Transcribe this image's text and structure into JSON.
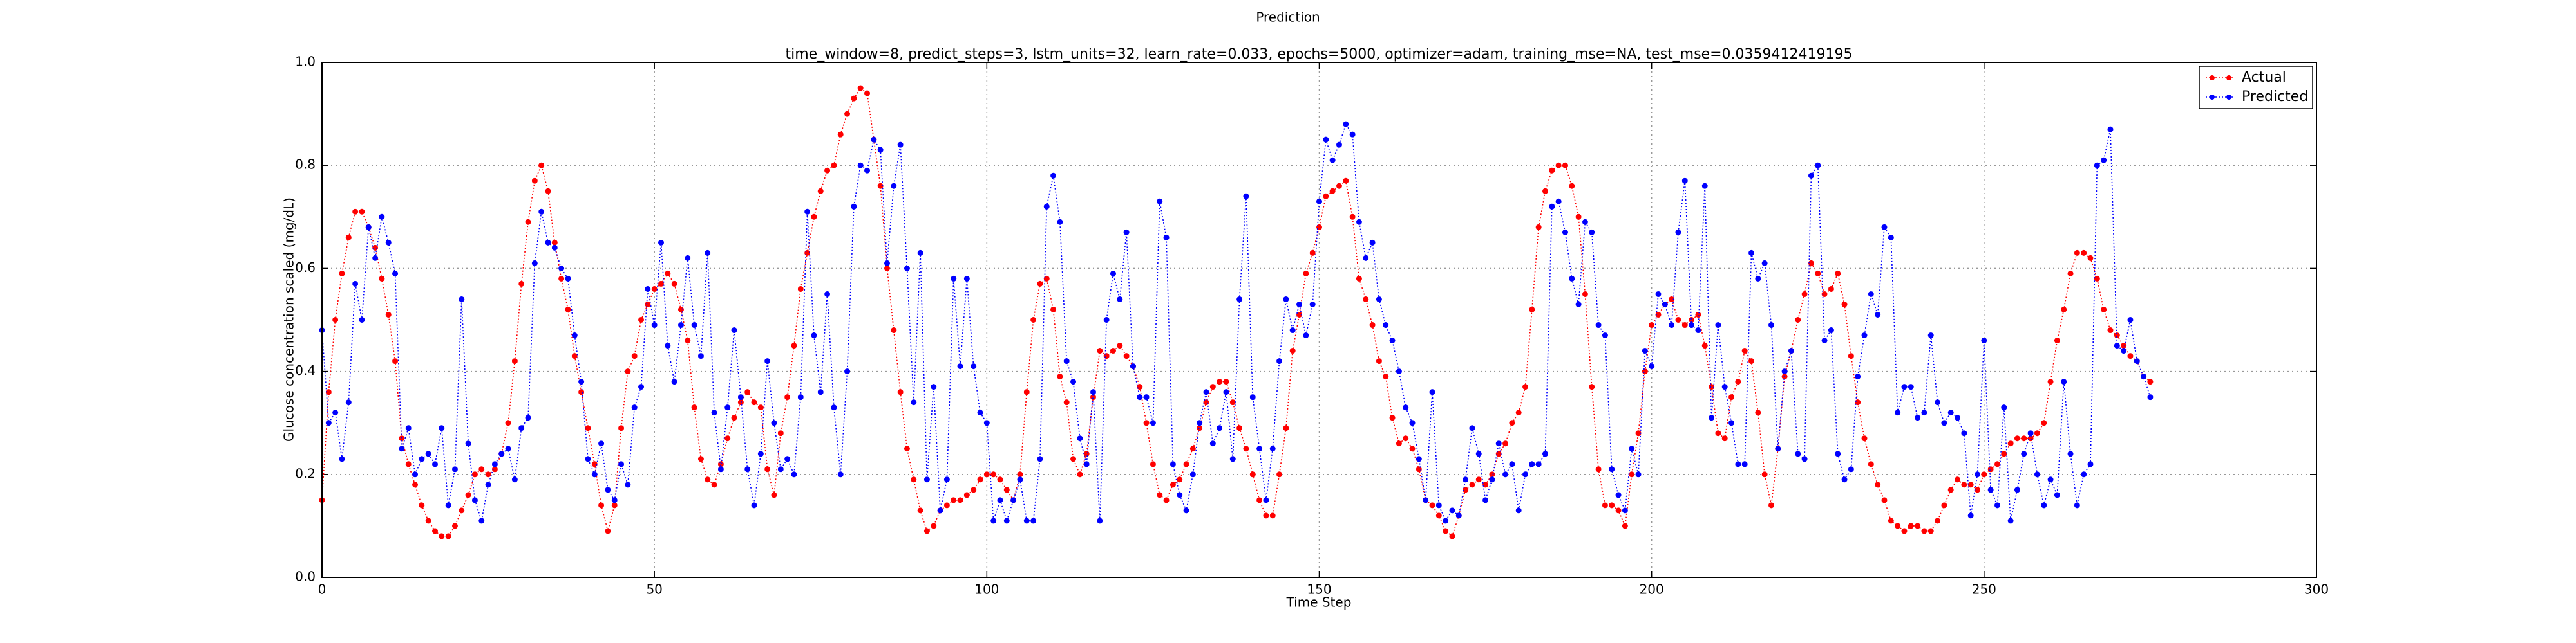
{
  "chart_data": {
    "type": "line",
    "suptitle": "Prediction",
    "title": "time_window=8, predict_steps=3, lstm_units=32, learn_rate=0.033, epochs=5000, optimizer=adam, training_mse=NA, test_mse=0.0359412419195",
    "xlabel": "Time Step",
    "ylabel": "Glucose concentration scaled (mg/dL)",
    "xlim": [
      0,
      300
    ],
    "ylim": [
      0,
      1
    ],
    "xticks": [
      0,
      50,
      100,
      150,
      200,
      250,
      300
    ],
    "yticks": [
      {
        "value": 0,
        "label": "0.0"
      },
      0.2,
      0.4,
      0.6,
      0.8,
      {
        "value": 1,
        "label": "1.0"
      }
    ],
    "grid": true,
    "legend": "upper right",
    "series": [
      {
        "name": "Actual",
        "color": "#ff0000",
        "values": [
          0.15,
          0.36,
          0.5,
          0.59,
          0.66,
          0.71,
          0.71,
          0.68,
          0.64,
          0.58,
          0.51,
          0.42,
          0.27,
          0.22,
          0.18,
          0.14,
          0.11,
          0.09,
          0.08,
          0.08,
          0.1,
          0.13,
          0.16,
          0.2,
          0.21,
          0.2,
          0.21,
          0.24,
          0.3,
          0.42,
          0.57,
          0.69,
          0.77,
          0.8,
          0.75,
          0.65,
          0.58,
          0.52,
          0.43,
          0.36,
          0.29,
          0.22,
          0.14,
          0.09,
          0.14,
          0.29,
          0.4,
          0.43,
          0.5,
          0.53,
          0.56,
          0.57,
          0.59,
          0.57,
          0.52,
          0.46,
          0.33,
          0.23,
          0.19,
          0.18,
          0.22,
          0.27,
          0.31,
          0.34,
          0.36,
          0.34,
          0.33,
          0.21,
          0.16,
          0.28,
          0.35,
          0.45,
          0.56,
          0.63,
          0.7,
          0.75,
          0.79,
          0.8,
          0.86,
          0.9,
          0.93,
          0.95,
          0.94,
          0.85,
          0.76,
          0.6,
          0.48,
          0.36,
          0.25,
          0.19,
          0.13,
          0.09,
          0.1,
          0.13,
          0.14,
          0.15,
          0.15,
          0.16,
          0.17,
          0.19,
          0.2,
          0.2,
          0.19,
          0.17,
          0.15,
          0.2,
          0.36,
          0.5,
          0.57,
          0.58,
          0.52,
          0.39,
          0.34,
          0.23,
          0.2,
          0.24,
          0.35,
          0.44,
          0.43,
          0.44,
          0.45,
          0.43,
          0.41,
          0.37,
          0.3,
          0.22,
          0.16,
          0.15,
          0.18,
          0.19,
          0.22,
          0.25,
          0.29,
          0.34,
          0.37,
          0.38,
          0.38,
          0.34,
          0.29,
          0.25,
          0.2,
          0.15,
          0.12,
          0.12,
          0.2,
          0.29,
          0.44,
          0.51,
          0.59,
          0.63,
          0.68,
          0.74,
          0.75,
          0.76,
          0.77,
          0.7,
          0.58,
          0.54,
          0.49,
          0.42,
          0.39,
          0.31,
          0.26,
          0.27,
          0.25,
          0.21,
          0.15,
          0.14,
          0.12,
          0.09,
          0.08,
          0.12,
          0.17,
          0.18,
          0.19,
          0.18,
          0.2,
          0.24,
          0.26,
          0.3,
          0.32,
          0.37,
          0.52,
          0.68,
          0.75,
          0.79,
          0.8,
          0.8,
          0.76,
          0.7,
          0.55,
          0.37,
          0.21,
          0.14,
          0.14,
          0.13,
          0.1,
          0.2,
          0.28,
          0.4,
          0.49,
          0.51,
          0.53,
          0.54,
          0.5,
          0.49,
          0.5,
          0.51,
          0.45,
          0.37,
          0.28,
          0.27,
          0.35,
          0.38,
          0.44,
          0.42,
          0.32,
          0.2,
          0.14,
          0.25,
          0.39,
          0.44,
          0.5,
          0.55,
          0.61,
          0.59,
          0.55,
          0.56,
          0.59,
          0.53,
          0.43,
          0.34,
          0.27,
          0.22,
          0.18,
          0.15,
          0.11,
          0.1,
          0.09,
          0.1,
          0.1,
          0.09,
          0.09,
          0.11,
          0.14,
          0.17,
          0.19,
          0.18,
          0.18,
          0.17,
          0.2,
          0.21,
          0.22,
          0.24,
          0.26,
          0.27,
          0.27,
          0.27,
          0.28,
          0.3,
          0.38,
          0.46,
          0.52,
          0.59,
          0.63,
          0.63,
          0.62,
          0.58,
          0.52,
          0.48,
          0.47,
          0.45,
          0.43,
          0.42,
          0.39,
          0.38
        ]
      },
      {
        "name": "Predicted",
        "color": "#0000ff",
        "values": [
          0.48,
          0.3,
          0.32,
          0.23,
          0.34,
          0.57,
          0.5,
          0.68,
          0.62,
          0.7,
          0.65,
          0.59,
          0.25,
          0.29,
          0.2,
          0.23,
          0.24,
          0.22,
          0.29,
          0.14,
          0.21,
          0.54,
          0.26,
          0.15,
          0.11,
          0.18,
          0.22,
          0.24,
          0.25,
          0.19,
          0.29,
          0.31,
          0.61,
          0.71,
          0.65,
          0.64,
          0.6,
          0.58,
          0.47,
          0.38,
          0.23,
          0.2,
          0.26,
          0.17,
          0.15,
          0.22,
          0.18,
          0.33,
          0.37,
          0.56,
          0.49,
          0.65,
          0.45,
          0.38,
          0.49,
          0.62,
          0.49,
          0.43,
          0.63,
          0.32,
          0.21,
          0.33,
          0.48,
          0.35,
          0.21,
          0.14,
          0.24,
          0.42,
          0.3,
          0.21,
          0.23,
          0.2,
          0.35,
          0.71,
          0.47,
          0.36,
          0.55,
          0.33,
          0.2,
          0.4,
          0.72,
          0.8,
          0.79,
          0.85,
          0.83,
          0.61,
          0.76,
          0.84,
          0.6,
          0.34,
          0.63,
          0.19,
          0.37,
          0.13,
          0.19,
          0.58,
          0.41,
          0.58,
          0.41,
          0.32,
          0.3,
          0.11,
          0.15,
          0.11,
          0.15,
          0.19,
          0.11,
          0.11,
          0.23,
          0.72,
          0.78,
          0.69,
          0.42,
          0.38,
          0.27,
          0.22,
          0.36,
          0.11,
          0.5,
          0.59,
          0.54,
          0.67,
          0.41,
          0.35,
          0.35,
          0.3,
          0.73,
          0.66,
          0.22,
          0.16,
          0.13,
          0.2,
          0.3,
          0.36,
          0.26,
          0.29,
          0.36,
          0.23,
          0.54,
          0.74,
          0.35,
          0.25,
          0.15,
          0.25,
          0.42,
          0.54,
          0.48,
          0.53,
          0.47,
          0.53,
          0.73,
          0.85,
          0.81,
          0.84,
          0.88,
          0.86,
          0.69,
          0.62,
          0.65,
          0.54,
          0.49,
          0.46,
          0.4,
          0.33,
          0.3,
          0.23,
          0.15,
          0.36,
          0.14,
          0.11,
          0.13,
          0.12,
          0.19,
          0.29,
          0.24,
          0.15,
          0.19,
          0.26,
          0.2,
          0.22,
          0.13,
          0.2,
          0.22,
          0.22,
          0.24,
          0.72,
          0.73,
          0.67,
          0.58,
          0.53,
          0.69,
          0.67,
          0.49,
          0.47,
          0.21,
          0.16,
          0.13,
          0.25,
          0.2,
          0.44,
          0.41,
          0.55,
          0.53,
          0.49,
          0.67,
          0.77,
          0.49,
          0.48,
          0.76,
          0.31,
          0.49,
          0.37,
          0.3,
          0.22,
          0.22,
          0.63,
          0.58,
          0.61,
          0.49,
          0.25,
          0.4,
          0.44,
          0.24,
          0.23,
          0.78,
          0.8,
          0.46,
          0.48,
          0.24,
          0.19,
          0.21,
          0.39,
          0.47,
          0.55,
          0.51,
          0.68,
          0.66,
          0.32,
          0.37,
          0.37,
          0.31,
          0.32,
          0.47,
          0.34,
          0.3,
          0.32,
          0.31,
          0.28,
          0.12,
          0.2,
          0.46,
          0.17,
          0.14,
          0.33,
          0.11,
          0.17,
          0.24,
          0.28,
          0.2,
          0.14,
          0.19,
          0.16,
          0.38,
          0.24,
          0.14,
          0.2,
          0.22,
          0.8,
          0.81,
          0.87,
          0.45,
          0.44,
          0.5,
          0.42,
          0.39,
          0.35
        ]
      }
    ]
  }
}
